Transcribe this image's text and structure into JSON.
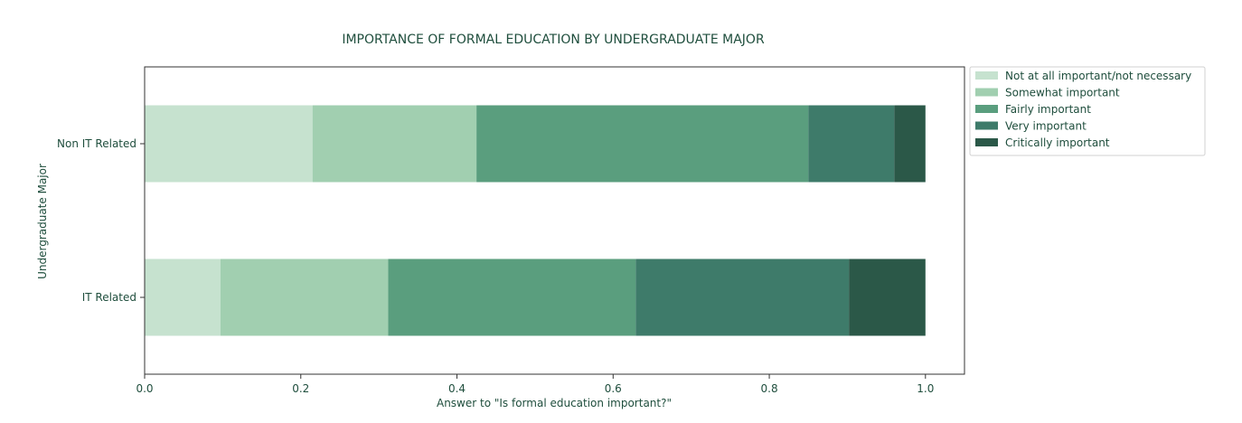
{
  "chart_data": {
    "type": "bar",
    "orientation": "horizontal",
    "stacked": true,
    "title": "IMPORTANCE OF FORMAL EDUCATION BY UNDERGRADUATE MAJOR",
    "xlabel": "Answer to \"Is formal education important?\"",
    "ylabel": "Undergraduate Major",
    "xlim": [
      0,
      1.05
    ],
    "xticks": [
      "0.0",
      "0.2",
      "0.4",
      "0.6",
      "0.8",
      "1.0"
    ],
    "categories": [
      "Non IT Related",
      "IT Related"
    ],
    "series": [
      {
        "name": "Not at all important/not necessary",
        "color": "#c6e2cf",
        "values": [
          0.215,
          0.097
        ]
      },
      {
        "name": "Somewhat important",
        "color": "#a1cfb0",
        "values": [
          0.21,
          0.215
        ]
      },
      {
        "name": "Fairly important",
        "color": "#5a9e7e",
        "values": [
          0.425,
          0.317
        ]
      },
      {
        "name": "Very important",
        "color": "#3e7b6a",
        "values": [
          0.11,
          0.273
        ]
      },
      {
        "name": "Critically important",
        "color": "#2b5848",
        "values": [
          0.04,
          0.098
        ]
      }
    ],
    "grid": false,
    "legend_position": "outside-top-right"
  }
}
